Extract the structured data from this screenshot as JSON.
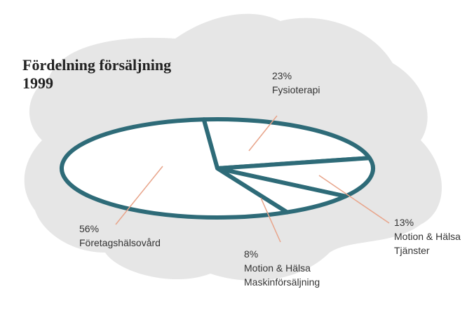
{
  "chart_data": {
    "type": "pie",
    "title": "Fördelning försäljning 1999",
    "categories": [
      "Fysioterapi",
      "Motion & Hälsa\nTjänster",
      "Motion & Hälsa\nMaskinförsäljning",
      "Företagshälsovård"
    ],
    "values": [
      23,
      13,
      8,
      56
    ],
    "value_labels": [
      "23%",
      "13%",
      "8%",
      "56%"
    ],
    "color": "#2e6b78"
  }
}
